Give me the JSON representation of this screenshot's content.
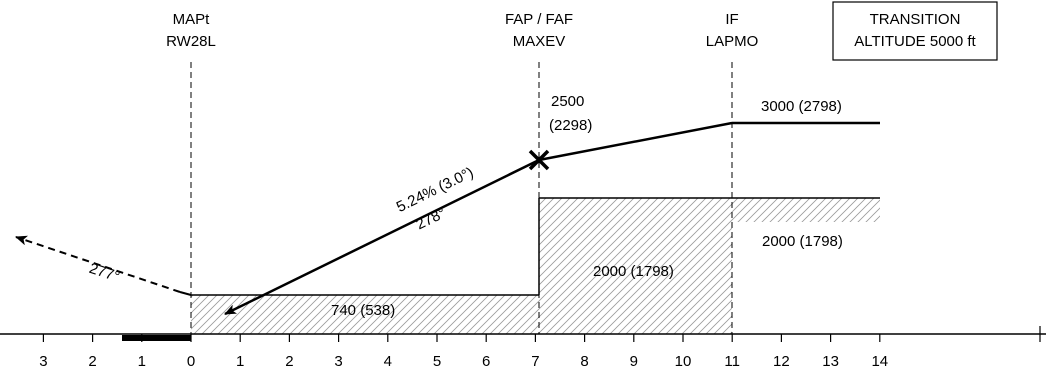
{
  "fixes": {
    "mapt": {
      "line1": "MAPt",
      "line2": "RW28L",
      "distance_nm": 0
    },
    "faf": {
      "line1": "FAP / FAF",
      "line2": "MAXEV",
      "distance_nm": 7
    },
    "if": {
      "line1": "IF",
      "line2": "LAPMO",
      "distance_nm": 11
    }
  },
  "transition_box": {
    "line1": "TRANSITION",
    "line2": "ALTITUDE 5000 ft"
  },
  "altitudes": {
    "faf_alt_top": "2500",
    "faf_alt_bottom": "(2298)",
    "if_alt": "3000 (2798)",
    "faf_floor": "2000 (1798)",
    "if_floor": "2000 (1798)",
    "mapt_floor": "740 (538)"
  },
  "glide": {
    "gradient": "5.24% (3.0°)",
    "track": "278°"
  },
  "missed": {
    "track": "277°"
  },
  "distance_scale": {
    "ticks": [
      {
        "label": "3",
        "value": -3
      },
      {
        "label": "2",
        "value": -2
      },
      {
        "label": "1",
        "value": -1
      },
      {
        "label": "0",
        "value": 0
      },
      {
        "label": "1",
        "value": 1
      },
      {
        "label": "2",
        "value": 2
      },
      {
        "label": "3",
        "value": 3
      },
      {
        "label": "4",
        "value": 4
      },
      {
        "label": "5",
        "value": 5
      },
      {
        "label": "6",
        "value": 6
      },
      {
        "label": "7",
        "value": 7
      },
      {
        "label": "8",
        "value": 8
      },
      {
        "label": "9",
        "value": 9
      },
      {
        "label": "10",
        "value": 10
      },
      {
        "label": "11",
        "value": 11
      },
      {
        "label": "12",
        "value": 12
      },
      {
        "label": "13",
        "value": 13
      },
      {
        "label": "14",
        "value": 14
      }
    ]
  }
}
